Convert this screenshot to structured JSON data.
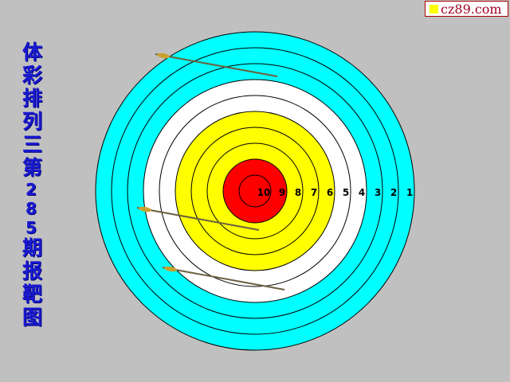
{
  "logo": {
    "text": "cz89.com",
    "square_color": "#ffff00"
  },
  "title": {
    "before": "体彩排列三第",
    "issue": "285",
    "after": "期报靶图"
  },
  "target": {
    "ring_labels": [
      "10",
      "9",
      "8",
      "7",
      "6",
      "5",
      "4",
      "3",
      "2",
      "1"
    ],
    "zone_colors": {
      "inner": "#ff0000",
      "gold": "#ffff00",
      "white": "#ffffff",
      "blue": "#00ffff"
    }
  },
  "arrows_count": 3
}
